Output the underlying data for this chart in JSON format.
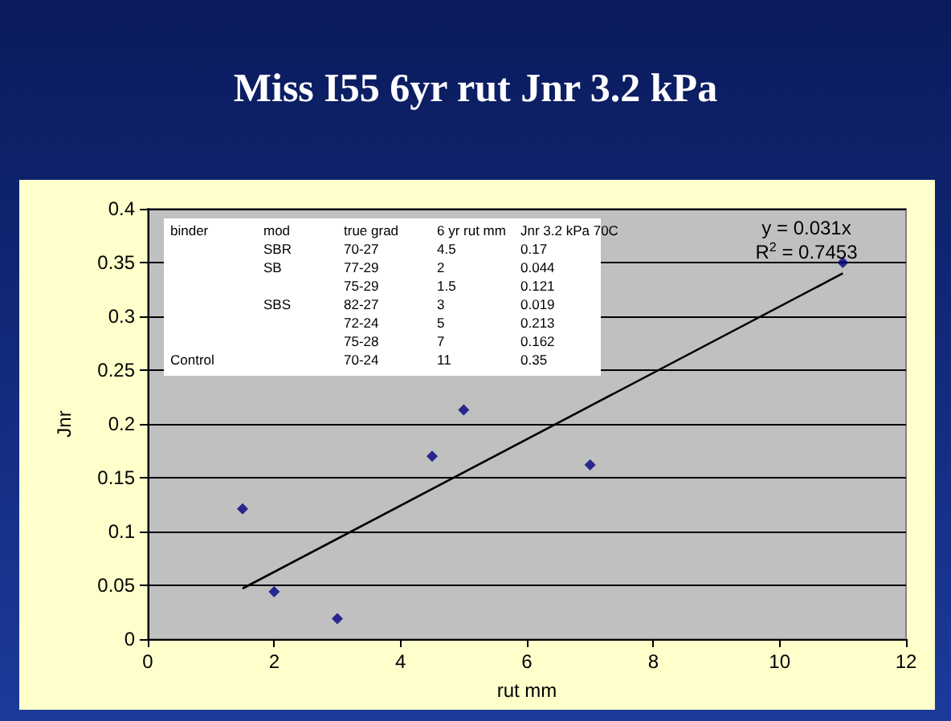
{
  "chart_data": {
    "type": "scatter",
    "title": "Miss I55 6yr rut Jnr 3.2 kPa",
    "xlabel": "rut mm",
    "ylabel": "Jnr",
    "series": [
      {
        "type": "scatter",
        "color": "#000080",
        "marker": "diamond",
        "x": [
          4.5,
          2,
          1.5,
          3,
          5,
          7,
          11
        ],
        "values": [
          0.17,
          0.044,
          0.121,
          0.019,
          0.213,
          0.162,
          0.35
        ]
      },
      {
        "type": "line",
        "color": "#000000",
        "marker": "none",
        "x": [
          1.5,
          11
        ],
        "values": [
          0.047,
          0.34
        ]
      }
    ],
    "xlim": [
      0,
      12
    ],
    "xticks": [
      0,
      2,
      4,
      6,
      8,
      10,
      12
    ],
    "ylim": [
      0,
      0.4
    ],
    "yticks": [
      0,
      0.05,
      0.1,
      0.15,
      0.2,
      0.25,
      0.3,
      0.35,
      0.4
    ],
    "grid": "y",
    "annotations": [
      "binder\tmod\ttrue grad\t6 yr rut mm\tJnr 3.2 kPa 70C",
      "\tSBR\t70-27\t4.5\t0.17",
      "\tSB\t77-29\t2\t0.044",
      "\t\t75-29\t1.5\t0.121",
      "\tSBS\t82-27\t3\t0.019",
      "\t\t72-24\t5\t0.213",
      "\t\t75-28\t7\t0.162",
      "Control\t\t70-24\t11\t0.35",
      "y = 0.031x",
      "R$^{2}$ = 0.7453"
    ]
  }
}
